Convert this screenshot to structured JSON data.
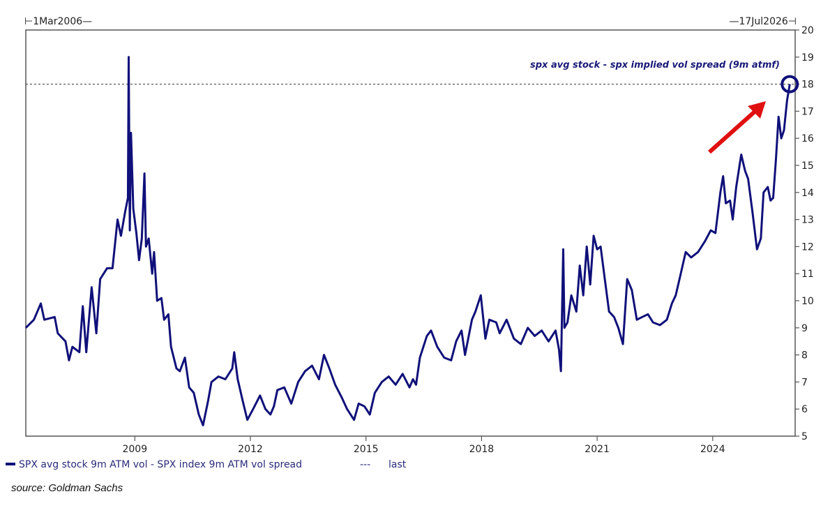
{
  "chart_data": {
    "type": "line",
    "title": "",
    "start_label": "⊢1Mar2006—",
    "end_label": "—17Jul2026⊣",
    "annotation": "spx avg stock - spx implied vol spread (9m atmf)",
    "xlim": [
      2006.17,
      2026.14
    ],
    "ylim": [
      5,
      20
    ],
    "x_ticks": [
      2009,
      2012,
      2015,
      2018,
      2021,
      2024
    ],
    "x_tick_labels": [
      "2009",
      "2012",
      "2015",
      "2018",
      "2021",
      "2024"
    ],
    "y_ticks": [
      5,
      6,
      7,
      8,
      9,
      10,
      11,
      12,
      13,
      14,
      15,
      16,
      17,
      18,
      19,
      20
    ],
    "y_axis_side": "right",
    "grid": false,
    "legend_placement": "bottom-left",
    "series": [
      {
        "name": "SPX avg stock 9m ATM vol - SPX index 9m ATM vol spread",
        "color": "#10107a",
        "x": [
          2006.17,
          2006.38,
          2006.56,
          2006.65,
          2006.92,
          2007.0,
          2007.2,
          2007.29,
          2007.38,
          2007.56,
          2007.65,
          2007.74,
          2007.88,
          2008.0,
          2008.1,
          2008.28,
          2008.42,
          2008.55,
          2008.64,
          2008.75,
          2008.82,
          2008.84,
          2008.87,
          2008.9,
          2008.96,
          2009.04,
          2009.11,
          2009.18,
          2009.25,
          2009.29,
          2009.36,
          2009.45,
          2009.5,
          2009.58,
          2009.69,
          2009.76,
          2009.87,
          2009.94,
          2010.08,
          2010.17,
          2010.3,
          2010.41,
          2010.53,
          2010.66,
          2010.77,
          2010.9,
          2010.99,
          2011.17,
          2011.35,
          2011.53,
          2011.58,
          2011.67,
          2011.8,
          2011.92,
          2012.07,
          2012.25,
          2012.39,
          2012.52,
          2012.61,
          2012.7,
          2012.88,
          2013.06,
          2013.24,
          2013.42,
          2013.6,
          2013.78,
          2013.91,
          2014.05,
          2014.2,
          2014.38,
          2014.51,
          2014.69,
          2014.81,
          2014.96,
          2015.1,
          2015.23,
          2015.41,
          2015.59,
          2015.77,
          2015.95,
          2016.13,
          2016.22,
          2016.3,
          2016.4,
          2016.58,
          2016.69,
          2016.85,
          2017.03,
          2017.21,
          2017.34,
          2017.48,
          2017.57,
          2017.75,
          2017.84,
          2017.98,
          2018.1,
          2018.2,
          2018.38,
          2018.47,
          2018.65,
          2018.84,
          2019.02,
          2019.2,
          2019.38,
          2019.56,
          2019.74,
          2019.92,
          2020.01,
          2020.06,
          2020.12,
          2020.15,
          2020.23,
          2020.33,
          2020.46,
          2020.55,
          2020.64,
          2020.73,
          2020.82,
          2020.91,
          2021.0,
          2021.09,
          2021.2,
          2021.31,
          2021.44,
          2021.55,
          2021.67,
          2021.78,
          2021.9,
          2022.03,
          2022.17,
          2022.32,
          2022.45,
          2022.63,
          2022.81,
          2022.94,
          2023.04,
          2023.17,
          2023.3,
          2023.44,
          2023.62,
          2023.8,
          2023.95,
          2024.07,
          2024.2,
          2024.27,
          2024.34,
          2024.45,
          2024.52,
          2024.61,
          2024.74,
          2024.84,
          2024.92,
          2025.03,
          2025.15,
          2025.25,
          2025.32,
          2025.43,
          2025.5,
          2025.57,
          2025.64,
          2025.71,
          2025.78,
          2025.85,
          2025.93,
          2026.0
        ],
        "values": [
          9.0,
          9.3,
          9.9,
          9.3,
          9.4,
          8.8,
          8.5,
          7.8,
          8.3,
          8.1,
          9.8,
          8.1,
          10.5,
          8.8,
          10.8,
          11.2,
          11.2,
          13.0,
          12.4,
          13.3,
          13.8,
          19.0,
          12.6,
          16.2,
          13.4,
          12.5,
          11.5,
          12.3,
          14.7,
          12.0,
          12.3,
          11.0,
          11.8,
          10.0,
          10.1,
          9.3,
          9.5,
          8.3,
          7.5,
          7.4,
          7.9,
          6.8,
          6.6,
          5.8,
          5.4,
          6.3,
          7.0,
          7.2,
          7.1,
          7.5,
          8.1,
          7.1,
          6.3,
          5.6,
          6.0,
          6.5,
          6.0,
          5.8,
          6.1,
          6.7,
          6.8,
          6.2,
          7.0,
          7.4,
          7.6,
          7.1,
          8.0,
          7.5,
          6.9,
          6.4,
          6.0,
          5.6,
          6.2,
          6.1,
          5.8,
          6.6,
          7.0,
          7.2,
          6.9,
          7.3,
          6.8,
          7.1,
          6.9,
          7.9,
          8.7,
          8.9,
          8.3,
          7.9,
          7.8,
          8.5,
          8.9,
          8.0,
          9.3,
          9.6,
          10.2,
          8.6,
          9.3,
          9.2,
          8.8,
          9.3,
          8.6,
          8.4,
          9.0,
          8.7,
          8.9,
          8.5,
          8.9,
          8.2,
          7.4,
          11.9,
          9.0,
          9.2,
          10.2,
          9.6,
          11.3,
          10.2,
          12.0,
          10.6,
          12.4,
          11.9,
          12.0,
          10.8,
          9.6,
          9.4,
          9.0,
          8.4,
          10.8,
          10.4,
          9.3,
          9.4,
          9.5,
          9.2,
          9.1,
          9.3,
          9.9,
          10.2,
          11.0,
          11.8,
          11.6,
          11.8,
          12.2,
          12.6,
          12.5,
          14.0,
          14.6,
          13.6,
          13.7,
          13.0,
          14.2,
          15.4,
          14.8,
          14.5,
          13.3,
          11.9,
          12.3,
          14.0,
          14.2,
          13.7,
          13.8,
          15.2,
          16.8,
          16.0,
          16.3,
          17.4,
          18.0
        ]
      },
      {
        "name": "last",
        "style": "dotted",
        "color": "#333333",
        "value": 18
      }
    ],
    "highlight": {
      "x": 2026.0,
      "y": 18.0,
      "marker": "circle",
      "color": "#10107a"
    },
    "arrow": {
      "color": "#e01010",
      "direction": "up-right"
    }
  },
  "legend": {
    "series_label": "SPX avg stock 9m ATM vol - SPX index 9m ATM vol spread",
    "last_symbol": "---",
    "last_label": "last"
  },
  "source": "source: Goldman Sachs"
}
